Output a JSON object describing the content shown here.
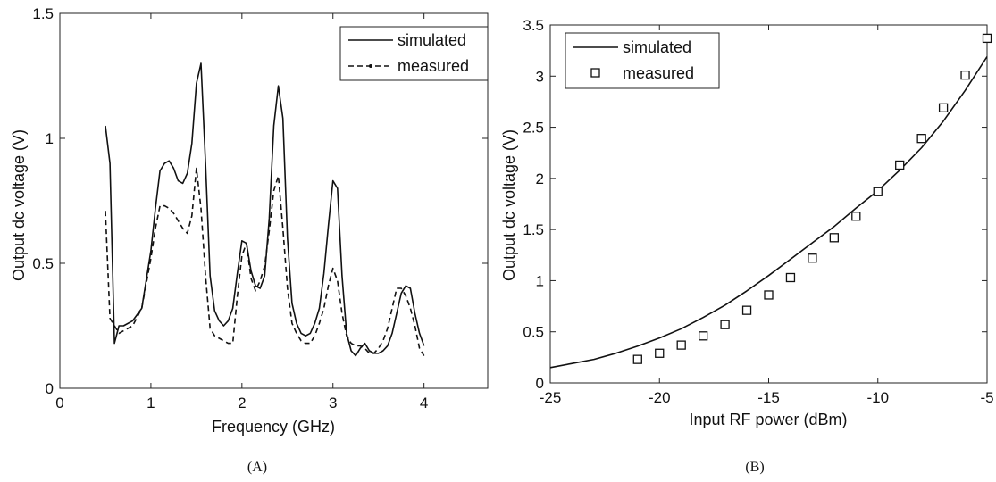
{
  "chart_data": [
    {
      "type": "line",
      "caption": "(A)",
      "xlabel": "Frequency (GHz)",
      "ylabel": "Output dc voltage (V)",
      "xlim": [
        0,
        4.7
      ],
      "ylim": [
        0,
        1.5
      ],
      "xticks": [
        0,
        1,
        2,
        3,
        4
      ],
      "xtick_labels": [
        "0",
        "1",
        "2",
        "3",
        "4"
      ],
      "yticks": [
        0,
        0.5,
        1,
        1.5
      ],
      "ytick_labels": [
        "0",
        "0.5",
        "1",
        "1.5"
      ],
      "legend_position": "top-right",
      "series": [
        {
          "name": "simulated",
          "style": "solid",
          "x": [
            0.5,
            0.55,
            0.6,
            0.65,
            0.7,
            0.8,
            0.9,
            1.0,
            1.05,
            1.1,
            1.15,
            1.2,
            1.25,
            1.3,
            1.35,
            1.4,
            1.45,
            1.5,
            1.55,
            1.6,
            1.65,
            1.7,
            1.75,
            1.8,
            1.85,
            1.9,
            1.95,
            2.0,
            2.05,
            2.1,
            2.15,
            2.2,
            2.25,
            2.3,
            2.35,
            2.4,
            2.45,
            2.5,
            2.55,
            2.6,
            2.65,
            2.7,
            2.75,
            2.8,
            2.85,
            2.9,
            2.95,
            3.0,
            3.05,
            3.1,
            3.15,
            3.2,
            3.25,
            3.3,
            3.35,
            3.4,
            3.45,
            3.5,
            3.55,
            3.6,
            3.65,
            3.7,
            3.75,
            3.8,
            3.85,
            3.9,
            3.95,
            4.0
          ],
          "y": [
            1.05,
            0.9,
            0.18,
            0.25,
            0.25,
            0.27,
            0.32,
            0.55,
            0.72,
            0.87,
            0.9,
            0.91,
            0.88,
            0.83,
            0.82,
            0.86,
            0.98,
            1.22,
            1.3,
            0.9,
            0.45,
            0.31,
            0.27,
            0.25,
            0.27,
            0.32,
            0.46,
            0.59,
            0.58,
            0.47,
            0.41,
            0.4,
            0.45,
            0.68,
            1.05,
            1.21,
            1.08,
            0.6,
            0.34,
            0.26,
            0.22,
            0.21,
            0.22,
            0.26,
            0.32,
            0.46,
            0.65,
            0.83,
            0.8,
            0.45,
            0.22,
            0.15,
            0.13,
            0.16,
            0.18,
            0.15,
            0.14,
            0.14,
            0.15,
            0.17,
            0.22,
            0.3,
            0.38,
            0.41,
            0.4,
            0.3,
            0.22,
            0.17
          ]
        },
        {
          "name": "measured",
          "style": "dashed",
          "x": [
            0.5,
            0.55,
            0.6,
            0.65,
            0.7,
            0.8,
            0.9,
            1.0,
            1.05,
            1.1,
            1.15,
            1.2,
            1.25,
            1.3,
            1.35,
            1.4,
            1.45,
            1.5,
            1.55,
            1.6,
            1.65,
            1.7,
            1.75,
            1.8,
            1.85,
            1.9,
            1.95,
            2.0,
            2.05,
            2.1,
            2.15,
            2.2,
            2.25,
            2.3,
            2.35,
            2.4,
            2.45,
            2.5,
            2.55,
            2.6,
            2.65,
            2.7,
            2.75,
            2.8,
            2.85,
            2.9,
            2.95,
            3.0,
            3.05,
            3.1,
            3.15,
            3.2,
            3.25,
            3.3,
            3.35,
            3.4,
            3.45,
            3.5,
            3.55,
            3.6,
            3.65,
            3.7,
            3.75,
            3.8,
            3.85,
            3.9,
            3.95,
            4.0
          ],
          "y": [
            0.71,
            0.28,
            0.25,
            0.22,
            0.23,
            0.25,
            0.32,
            0.52,
            0.64,
            0.73,
            0.73,
            0.72,
            0.7,
            0.67,
            0.64,
            0.62,
            0.69,
            0.88,
            0.72,
            0.45,
            0.24,
            0.21,
            0.2,
            0.19,
            0.18,
            0.18,
            0.37,
            0.53,
            0.58,
            0.44,
            0.39,
            0.43,
            0.49,
            0.63,
            0.79,
            0.85,
            0.64,
            0.4,
            0.26,
            0.22,
            0.19,
            0.18,
            0.18,
            0.21,
            0.26,
            0.32,
            0.41,
            0.48,
            0.43,
            0.3,
            0.21,
            0.18,
            0.17,
            0.17,
            0.16,
            0.14,
            0.14,
            0.16,
            0.19,
            0.24,
            0.32,
            0.4,
            0.4,
            0.37,
            0.32,
            0.25,
            0.16,
            0.13
          ]
        }
      ]
    },
    {
      "type": "line",
      "caption": "(B)",
      "xlabel": "Input RF power (dBm)",
      "ylabel": "Output dc voltage (V)",
      "xlim": [
        -25,
        -5
      ],
      "ylim": [
        0,
        3.5
      ],
      "xticks": [
        -25,
        -20,
        -15,
        -10,
        -5
      ],
      "xtick_labels": [
        "-25",
        "-20",
        "-15",
        "-10",
        "-5"
      ],
      "yticks": [
        0,
        0.5,
        1,
        1.5,
        2,
        2.5,
        3,
        3.5
      ],
      "ytick_labels": [
        "0",
        "0.5",
        "1",
        "1.5",
        "2",
        "2.5",
        "3",
        "3.5"
      ],
      "legend_position": "top-left",
      "series": [
        {
          "name": "simulated",
          "style": "solid",
          "x": [
            -25,
            -24,
            -23,
            -22,
            -21,
            -20,
            -19,
            -18,
            -17,
            -16,
            -15,
            -14,
            -13,
            -12,
            -11,
            -10,
            -9,
            -8,
            -7,
            -6,
            -5
          ],
          "y": [
            0.15,
            0.19,
            0.23,
            0.29,
            0.36,
            0.44,
            0.53,
            0.64,
            0.76,
            0.9,
            1.05,
            1.21,
            1.37,
            1.53,
            1.71,
            1.88,
            2.08,
            2.3,
            2.56,
            2.86,
            3.19
          ]
        },
        {
          "name": "measured",
          "style": "square-markers",
          "x": [
            -21,
            -20,
            -19,
            -18,
            -17,
            -16,
            -15,
            -14,
            -13,
            -12,
            -11,
            -10,
            -9,
            -8,
            -7,
            -6,
            -5
          ],
          "y": [
            0.23,
            0.29,
            0.37,
            0.46,
            0.57,
            0.71,
            0.86,
            1.03,
            1.22,
            1.42,
            1.63,
            1.87,
            2.13,
            2.39,
            2.69,
            3.01,
            3.37
          ]
        }
      ]
    }
  ]
}
